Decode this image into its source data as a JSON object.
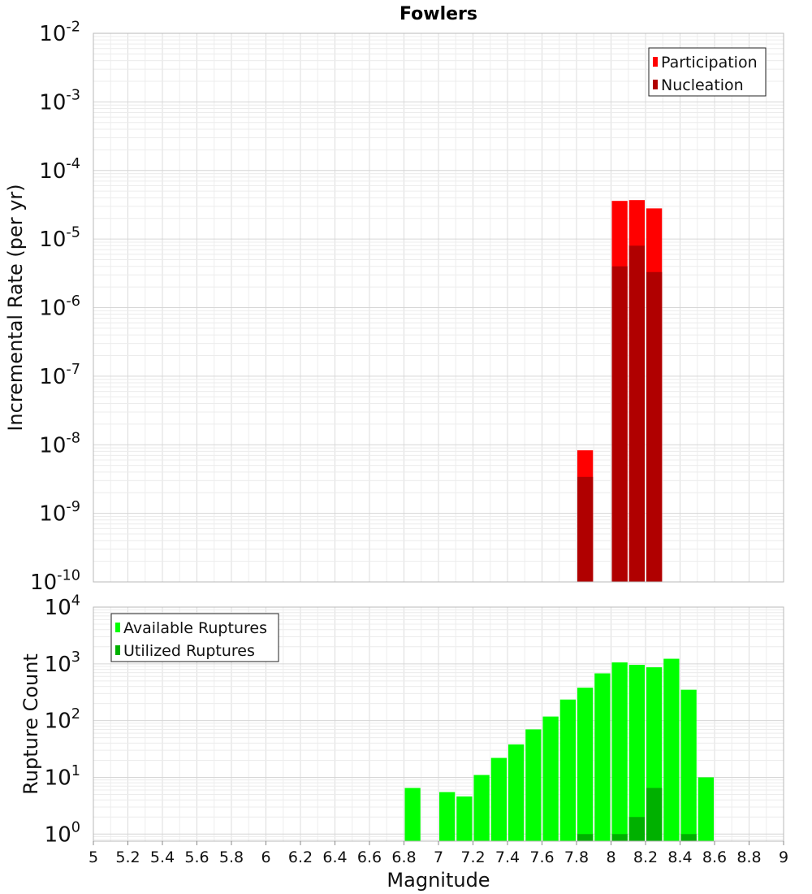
{
  "chart_data": [
    {
      "type": "bar",
      "title": "Fowlers",
      "ylabel": "Incremental Rate (per yr)",
      "xlabel": "Magnitude",
      "yscale": "log",
      "ylim": [
        1e-10,
        0.01
      ],
      "xlim": [
        5,
        9
      ],
      "bar_width": 0.1,
      "legend_position": "top-right",
      "y_ticks": [
        {
          "base": "10",
          "exp": "-10"
        },
        {
          "base": "10",
          "exp": "-9"
        },
        {
          "base": "10",
          "exp": "-8"
        },
        {
          "base": "10",
          "exp": "-7"
        },
        {
          "base": "10",
          "exp": "-6"
        },
        {
          "base": "10",
          "exp": "-5"
        },
        {
          "base": "10",
          "exp": "-4"
        },
        {
          "base": "10",
          "exp": "-3"
        },
        {
          "base": "10",
          "exp": "-2"
        }
      ],
      "series": [
        {
          "name": "Participation",
          "color": "#ff0000",
          "points": [
            {
              "x": 7.85,
              "y": 8.3e-09
            },
            {
              "x": 8.05,
              "y": 3.6e-05
            },
            {
              "x": 8.15,
              "y": 3.7e-05
            },
            {
              "x": 8.25,
              "y": 2.8e-05
            }
          ]
        },
        {
          "name": "Nucleation",
          "color": "#b00000",
          "points": [
            {
              "x": 7.85,
              "y": 3.4e-09
            },
            {
              "x": 8.05,
              "y": 4e-06
            },
            {
              "x": 8.15,
              "y": 8e-06
            },
            {
              "x": 8.25,
              "y": 3.3e-06
            }
          ]
        }
      ]
    },
    {
      "type": "bar",
      "title": "",
      "ylabel": "Rupture Count",
      "xlabel": "Magnitude",
      "yscale": "log",
      "ylim": [
        0.75,
        10000
      ],
      "xlim": [
        5,
        9
      ],
      "bar_width": 0.1,
      "legend_position": "top-left",
      "y_ticks": [
        {
          "value": 1,
          "base": "10",
          "exp": "0"
        },
        {
          "value": 10,
          "base": "10",
          "exp": "1"
        },
        {
          "value": 100,
          "base": "10",
          "exp": "2"
        },
        {
          "value": 1000,
          "base": "10",
          "exp": "3"
        },
        {
          "value": 10000,
          "base": "10",
          "exp": "4"
        }
      ],
      "x_ticks": [
        "5",
        "5.2",
        "5.4",
        "5.6",
        "5.8",
        "6",
        "6.2",
        "6.4",
        "6.6",
        "6.8",
        "7",
        "7.2",
        "7.4",
        "7.6",
        "7.8",
        "8",
        "8.2",
        "8.4",
        "8.6",
        "8.8",
        "9"
      ],
      "series": [
        {
          "name": "Available Ruptures",
          "color": "#00ff00",
          "points": [
            {
              "x": 6.85,
              "y": 6.5
            },
            {
              "x": 7.05,
              "y": 5.5
            },
            {
              "x": 7.15,
              "y": 4.6
            },
            {
              "x": 7.25,
              "y": 11
            },
            {
              "x": 7.35,
              "y": 22
            },
            {
              "x": 7.45,
              "y": 38
            },
            {
              "x": 7.55,
              "y": 70
            },
            {
              "x": 7.65,
              "y": 118
            },
            {
              "x": 7.75,
              "y": 235
            },
            {
              "x": 7.85,
              "y": 380
            },
            {
              "x": 7.95,
              "y": 680
            },
            {
              "x": 8.05,
              "y": 1060
            },
            {
              "x": 8.15,
              "y": 960
            },
            {
              "x": 8.25,
              "y": 870
            },
            {
              "x": 8.35,
              "y": 1230
            },
            {
              "x": 8.45,
              "y": 350
            },
            {
              "x": 8.55,
              "y": 10
            }
          ]
        },
        {
          "name": "Utilized Ruptures",
          "color": "#00b000",
          "points": [
            {
              "x": 7.85,
              "y": 1
            },
            {
              "x": 8.05,
              "y": 1
            },
            {
              "x": 8.15,
              "y": 2
            },
            {
              "x": 8.25,
              "y": 6.5
            },
            {
              "x": 8.45,
              "y": 1
            }
          ]
        }
      ]
    }
  ]
}
